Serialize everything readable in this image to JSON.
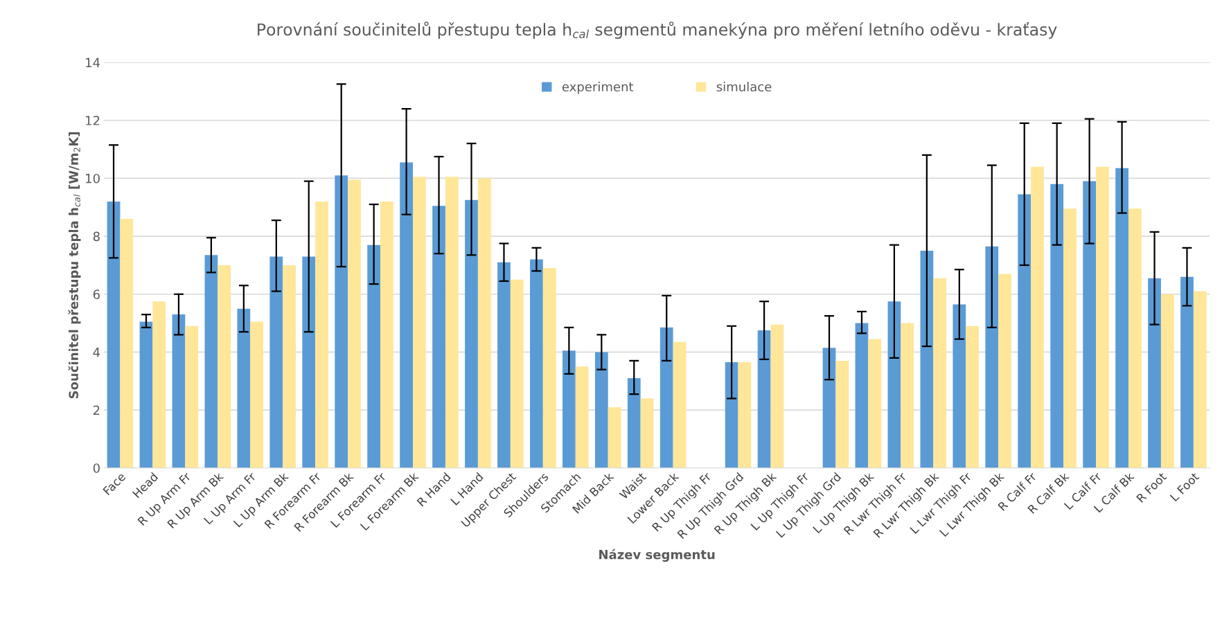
{
  "chart_data": {
    "type": "bar",
    "title": "Porovnání součinitelů přestupu tepla h$_{cal}$ segmentů manekýna pro měření letního oděvu - kraťasy",
    "xlabel": "Název segmentu",
    "ylabel": "Součinitel přestupu tepla h$_{cal}$ [W/m$_{2}$K]",
    "categories": [
      "Face",
      "Head",
      "R Up Arm Fr",
      "R Up Arm Bk",
      "L Up Arm Fr",
      "L Up Arm Bk",
      "R Forearm Fr",
      "R Forearm Bk",
      "L Forearm Fr",
      "L Forearm Bk",
      "R Hand",
      "L Hand",
      "Upper Chest",
      "Shoulders",
      "Stomach",
      "Mid Back",
      "Waist",
      "Lower Back",
      "R Up Thigh Fr",
      "R Up Thigh Grd",
      "R Up Thigh Bk",
      "L Up Thigh Fr",
      "L Up Thigh Grd",
      "L Up Thigh Bk",
      "R Lwr Thigh Fr",
      "R Lwr Thigh Bk",
      "L Lwr Thigh Fr",
      "L Lwr Thigh Bk",
      "R Calf Fr",
      "R Calf Bk",
      "L Calf Fr",
      "L Calf Bk",
      "R Foot",
      "L Foot"
    ],
    "series": [
      {
        "name": "experiment",
        "color": "#5b9bd5",
        "values": [
          9.2,
          5.05,
          5.3,
          7.35,
          5.5,
          7.3,
          7.3,
          10.1,
          7.7,
          10.55,
          9.05,
          9.25,
          7.1,
          7.2,
          4.05,
          4.0,
          3.1,
          4.85,
          0,
          3.65,
          4.75,
          0,
          4.15,
          5.0,
          5.75,
          7.5,
          5.65,
          7.65,
          9.45,
          9.8,
          9.9,
          10.35,
          6.55,
          6.6
        ],
        "errors": [
          [
            7.25,
            11.15
          ],
          [
            4.85,
            5.3
          ],
          [
            4.6,
            6.0
          ],
          [
            6.75,
            7.95
          ],
          [
            4.7,
            6.3
          ],
          [
            6.1,
            8.55
          ],
          [
            4.7,
            9.9
          ],
          [
            6.95,
            13.25
          ],
          [
            6.35,
            9.1
          ],
          [
            8.75,
            12.4
          ],
          [
            7.4,
            10.75
          ],
          [
            7.35,
            11.2
          ],
          [
            6.45,
            7.75
          ],
          [
            6.8,
            7.6
          ],
          [
            3.25,
            4.85
          ],
          [
            3.4,
            4.6
          ],
          [
            2.55,
            3.7
          ],
          [
            3.7,
            5.95
          ],
          null,
          [
            2.4,
            4.9
          ],
          [
            3.75,
            5.75
          ],
          null,
          [
            3.05,
            5.25
          ],
          [
            4.65,
            5.4
          ],
          [
            3.8,
            7.7
          ],
          [
            4.2,
            10.8
          ],
          [
            4.45,
            6.85
          ],
          [
            4.85,
            10.45
          ],
          [
            7.0,
            11.9
          ],
          [
            7.7,
            11.9
          ],
          [
            7.75,
            12.05
          ],
          [
            8.8,
            11.95
          ],
          [
            4.95,
            8.15
          ],
          [
            5.6,
            7.6
          ]
        ]
      },
      {
        "name": "simulace",
        "color": "#ffe699",
        "values": [
          8.6,
          5.75,
          4.9,
          7.0,
          5.05,
          7.0,
          9.2,
          9.95,
          9.2,
          10.05,
          10.05,
          10.0,
          6.5,
          6.9,
          3.5,
          2.1,
          2.4,
          4.35,
          0,
          3.65,
          4.95,
          0,
          3.7,
          4.45,
          5.0,
          6.55,
          4.9,
          6.7,
          10.4,
          8.95,
          10.4,
          8.95,
          6.0,
          6.1
        ]
      }
    ],
    "ylim": [
      0,
      14
    ],
    "yticks": [
      0,
      2,
      4,
      6,
      8,
      10,
      12,
      14
    ],
    "grid": "y",
    "legend": "top"
  }
}
